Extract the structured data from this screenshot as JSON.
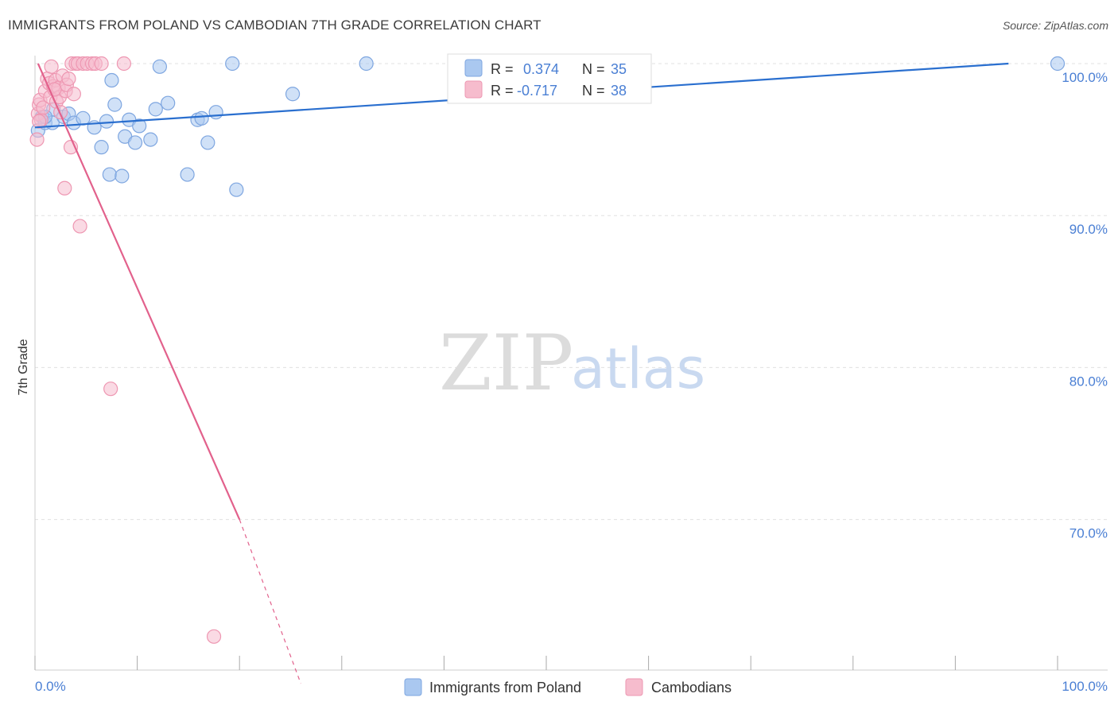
{
  "title": "IMMIGRANTS FROM POLAND VS CAMBODIAN 7TH GRADE CORRELATION CHART",
  "source": "Source: ZipAtlas.com",
  "watermark": {
    "zip": "ZIP",
    "atlas": "atlas"
  },
  "colors": {
    "blue_fill": "#aac8f0",
    "blue_stroke": "#7ea6e0",
    "blue_line": "#2a6fcf",
    "pink_fill": "#f6bccd",
    "pink_stroke": "#ee97b2",
    "pink_line": "#e2618c",
    "grid": "#e0e0e0",
    "tick_text": "#4a7fd4"
  },
  "stats": {
    "blue": {
      "r_label": "R =",
      "r_value": "0.374",
      "n_label": "N =",
      "n_value": "35"
    },
    "pink": {
      "r_label": "R =",
      "r_value": "-0.717",
      "n_label": "N =",
      "n_value": "38"
    }
  },
  "chart_data": {
    "type": "scatter",
    "title": "IMMIGRANTS FROM POLAND VS CAMBODIAN 7TH GRADE CORRELATION CHART",
    "xlabel": "",
    "ylabel": "7th Grade",
    "xlim": [
      0,
      100
    ],
    "ylim": [
      60,
      100.8
    ],
    "x_tick_labels": [
      "0.0%",
      "100.0%"
    ],
    "y_ticks": [
      100,
      90,
      80,
      70
    ],
    "y_tick_labels": [
      "100.0%",
      "90.0%",
      "80.0%",
      "70.0%"
    ],
    "legend": [
      "Immigrants from Poland",
      "Cambodians"
    ],
    "series": [
      {
        "name": "Immigrants from Poland",
        "color": "#aac8f0",
        "points": [
          [
            0.3,
            95.6
          ],
          [
            0.7,
            96.5
          ],
          [
            1.0,
            96.1
          ],
          [
            1.7,
            96.1
          ],
          [
            1.8,
            97.0
          ],
          [
            2.8,
            96.5
          ],
          [
            3.3,
            96.7
          ],
          [
            3.8,
            96.1
          ],
          [
            4.7,
            96.4
          ],
          [
            5.8,
            95.8
          ],
          [
            6.5,
            94.5
          ],
          [
            7.0,
            96.2
          ],
          [
            7.3,
            92.7
          ],
          [
            7.5,
            98.9
          ],
          [
            7.8,
            97.3
          ],
          [
            8.5,
            92.6
          ],
          [
            8.8,
            95.2
          ],
          [
            9.2,
            96.3
          ],
          [
            9.8,
            94.8
          ],
          [
            10.2,
            95.9
          ],
          [
            11.3,
            95.0
          ],
          [
            11.8,
            97.0
          ],
          [
            12.2,
            99.8
          ],
          [
            13.0,
            97.4
          ],
          [
            14.9,
            92.7
          ],
          [
            15.9,
            96.3
          ],
          [
            16.3,
            96.4
          ],
          [
            16.9,
            94.8
          ],
          [
            17.7,
            96.8
          ],
          [
            19.3,
            100.0
          ],
          [
            19.7,
            91.7
          ],
          [
            25.2,
            98.0
          ],
          [
            32.4,
            100.0
          ],
          [
            100.0,
            100.0
          ],
          [
            1.0,
            96.5
          ]
        ],
        "trend": {
          "x": [
            0,
            95.2
          ],
          "y": [
            95.8,
            100.0
          ]
        }
      },
      {
        "name": "Cambodians",
        "color": "#f6bccd",
        "points": [
          [
            0.2,
            95.0
          ],
          [
            0.3,
            96.7
          ],
          [
            0.4,
            97.3
          ],
          [
            0.5,
            97.6
          ],
          [
            0.6,
            96.3
          ],
          [
            0.8,
            97.1
          ],
          [
            1.0,
            98.2
          ],
          [
            1.2,
            99.0
          ],
          [
            1.4,
            98.7
          ],
          [
            1.5,
            97.8
          ],
          [
            1.6,
            99.8
          ],
          [
            1.8,
            98.5
          ],
          [
            2.0,
            98.9
          ],
          [
            2.1,
            97.5
          ],
          [
            2.3,
            98.4
          ],
          [
            2.4,
            97.8
          ],
          [
            2.5,
            96.8
          ],
          [
            2.7,
            99.2
          ],
          [
            2.9,
            91.8
          ],
          [
            3.0,
            98.2
          ],
          [
            3.1,
            98.6
          ],
          [
            3.3,
            99.0
          ],
          [
            3.5,
            94.5
          ],
          [
            3.6,
            100.0
          ],
          [
            3.8,
            98.0
          ],
          [
            4.0,
            100.0
          ],
          [
            4.2,
            100.0
          ],
          [
            4.4,
            89.3
          ],
          [
            4.7,
            100.0
          ],
          [
            5.1,
            100.0
          ],
          [
            5.6,
            100.0
          ],
          [
            5.9,
            100.0
          ],
          [
            6.5,
            100.0
          ],
          [
            7.4,
            78.6
          ],
          [
            8.7,
            100.0
          ],
          [
            17.5,
            62.3
          ],
          [
            0.4,
            96.2
          ],
          [
            1.9,
            98.3
          ]
        ],
        "trend": {
          "x": [
            0.3,
            20.0
          ],
          "y": [
            100.0,
            70.0
          ]
        },
        "trend_extension": {
          "x": [
            20.0,
            26.0
          ],
          "y": [
            70.0,
            59.2
          ]
        }
      }
    ]
  }
}
